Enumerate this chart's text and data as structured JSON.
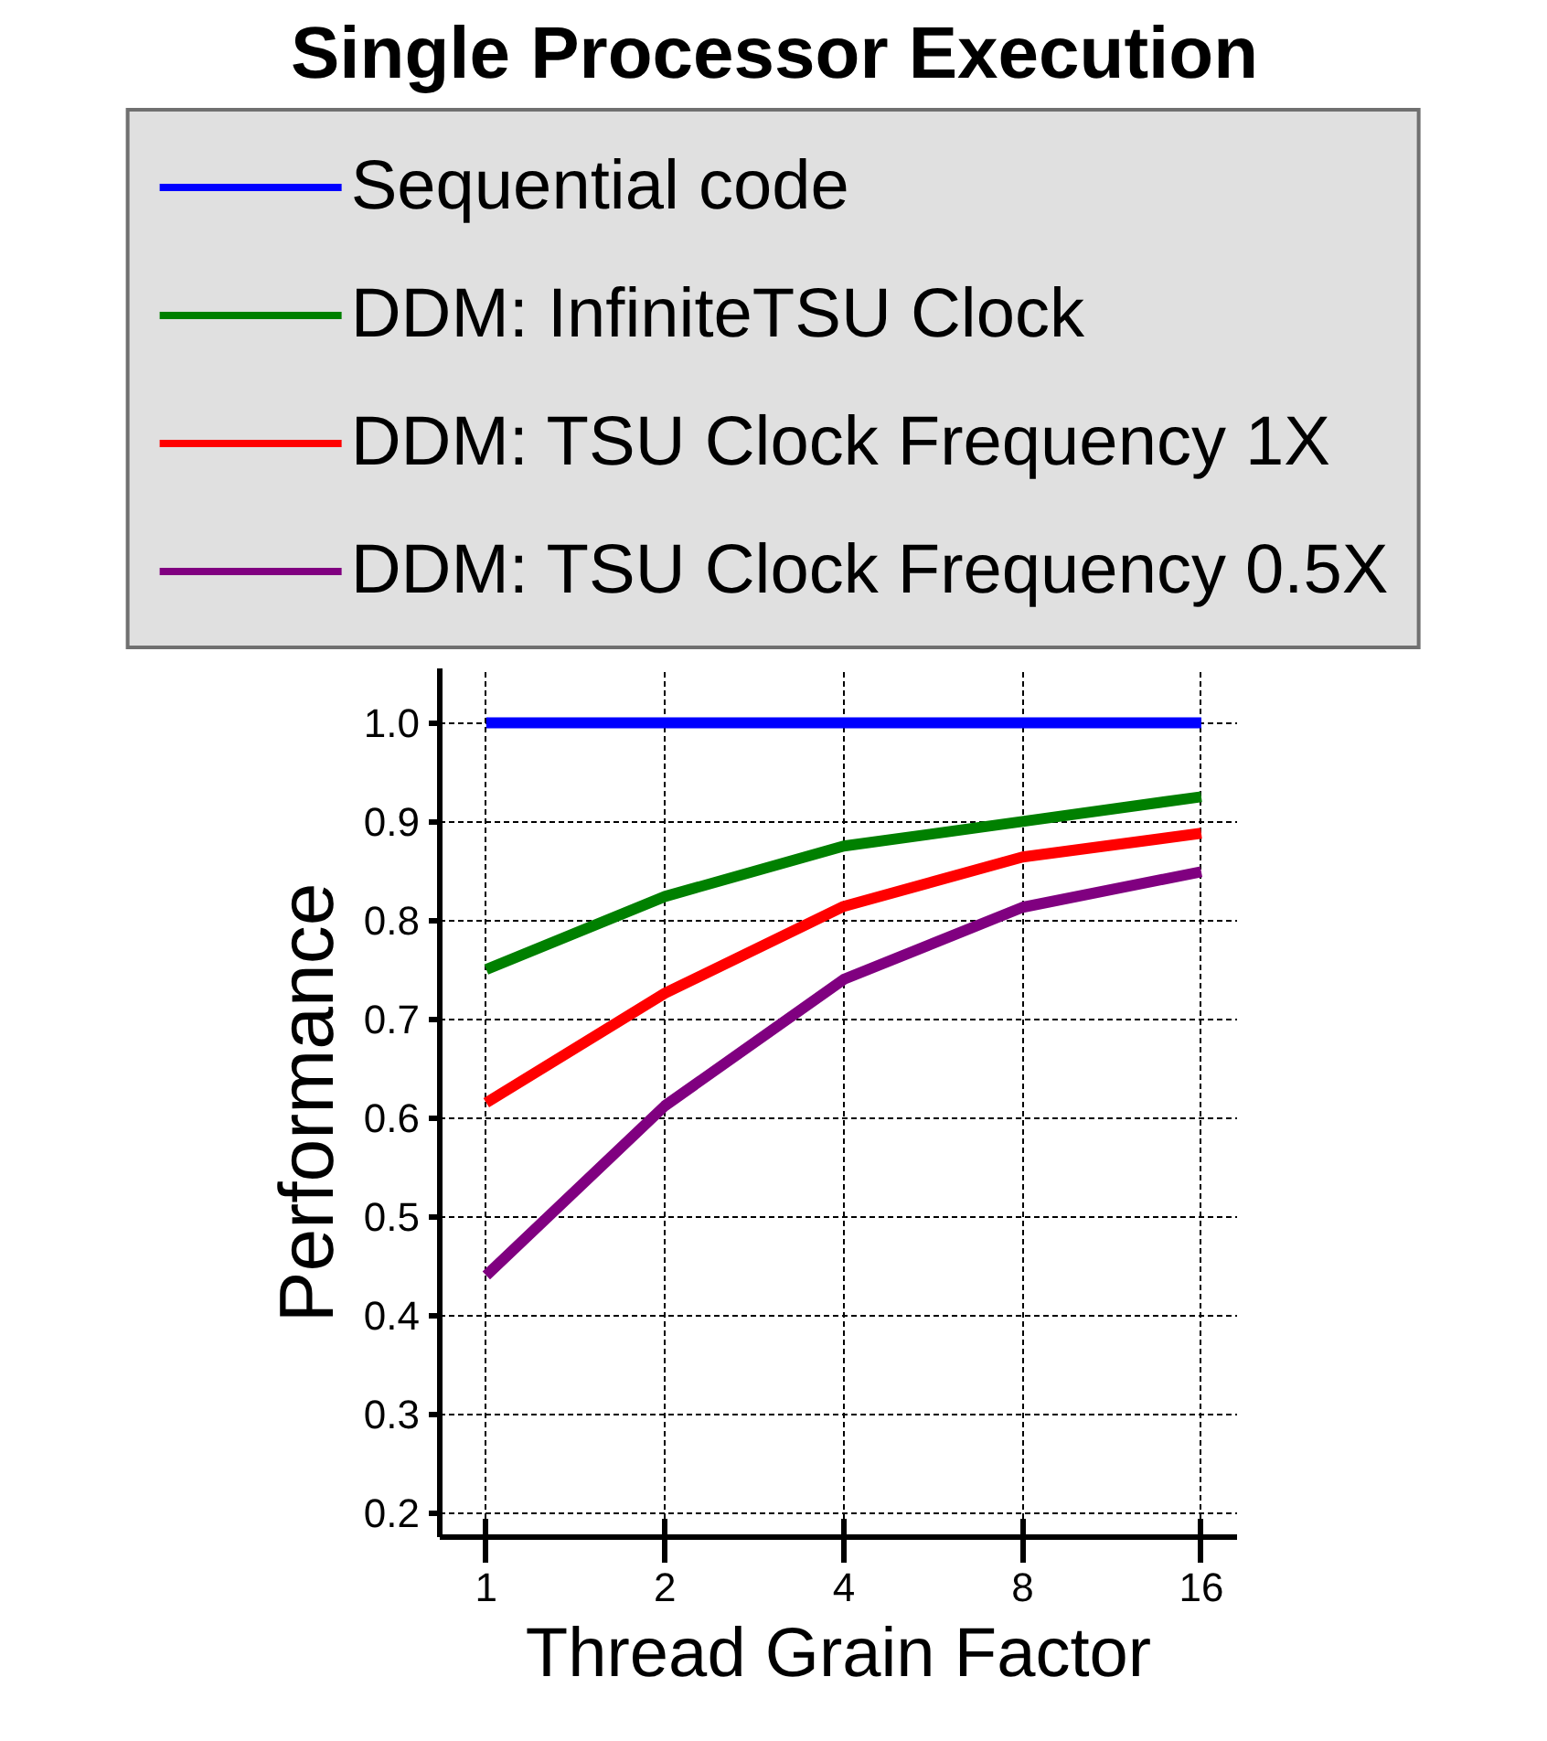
{
  "chart_data": {
    "type": "line",
    "title": "Single Processor Execution",
    "xlabel": "Thread Grain Factor",
    "ylabel": "Performance",
    "categories": [
      "1",
      "2",
      "4",
      "8",
      "16"
    ],
    "series": [
      {
        "name": "Sequential code",
        "color": "#0000ff",
        "values": [
          1.0,
          1.0,
          1.0,
          1.0,
          1.0
        ]
      },
      {
        "name": "DDM: InfiniteTSU Clock",
        "color": "#008000",
        "values": [
          0.75,
          0.824,
          0.875,
          0.9,
          0.925
        ]
      },
      {
        "name": "DDM: TSU Clock Frequency 1X",
        "color": "#ff0000",
        "values": [
          0.615,
          0.726,
          0.814,
          0.864,
          0.888
        ]
      },
      {
        "name": "DDM: TSU Clock Frequency 0.5X",
        "color": "#800080",
        "values": [
          0.44,
          0.612,
          0.74,
          0.813,
          0.849
        ]
      }
    ],
    "ylim": [
      0.175,
      1.055
    ],
    "yticks": [
      0.2,
      0.3,
      0.4,
      0.5,
      0.6,
      0.7,
      0.8,
      0.9,
      {
        "value": 1.0,
        "label": "1.0"
      }
    ],
    "grid": true,
    "legend": "top",
    "line_style": "solid"
  }
}
